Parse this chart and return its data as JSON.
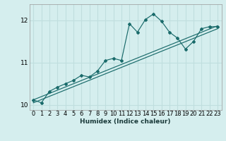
{
  "xlabel": "Humidex (Indice chaleur)",
  "bg_color": "#d5eeee",
  "line_color": "#1a6b6b",
  "grid_color": "#c0dede",
  "x_data": [
    0,
    1,
    2,
    3,
    4,
    5,
    6,
    7,
    8,
    9,
    10,
    11,
    12,
    13,
    14,
    15,
    16,
    17,
    18,
    19,
    20,
    21,
    22,
    23
  ],
  "y_curve": [
    10.12,
    10.05,
    10.32,
    10.42,
    10.5,
    10.58,
    10.7,
    10.66,
    10.8,
    11.05,
    11.1,
    11.05,
    11.92,
    11.72,
    12.02,
    12.15,
    11.98,
    11.72,
    11.58,
    11.32,
    11.5,
    11.8,
    11.85,
    11.85
  ],
  "y_line1_start": 10.12,
  "y_line1_end": 11.87,
  "y_line2_start": 10.05,
  "y_line2_end": 11.8,
  "ylim": [
    9.88,
    12.38
  ],
  "yticks": [
    10,
    11,
    12
  ],
  "xticks": [
    0,
    1,
    2,
    3,
    4,
    5,
    6,
    7,
    8,
    9,
    10,
    11,
    12,
    13,
    14,
    15,
    16,
    17,
    18,
    19,
    20,
    21,
    22,
    23
  ],
  "xlabel_fontsize": 6.5,
  "tick_fontsize": 6,
  "ytick_fontsize": 6.5
}
